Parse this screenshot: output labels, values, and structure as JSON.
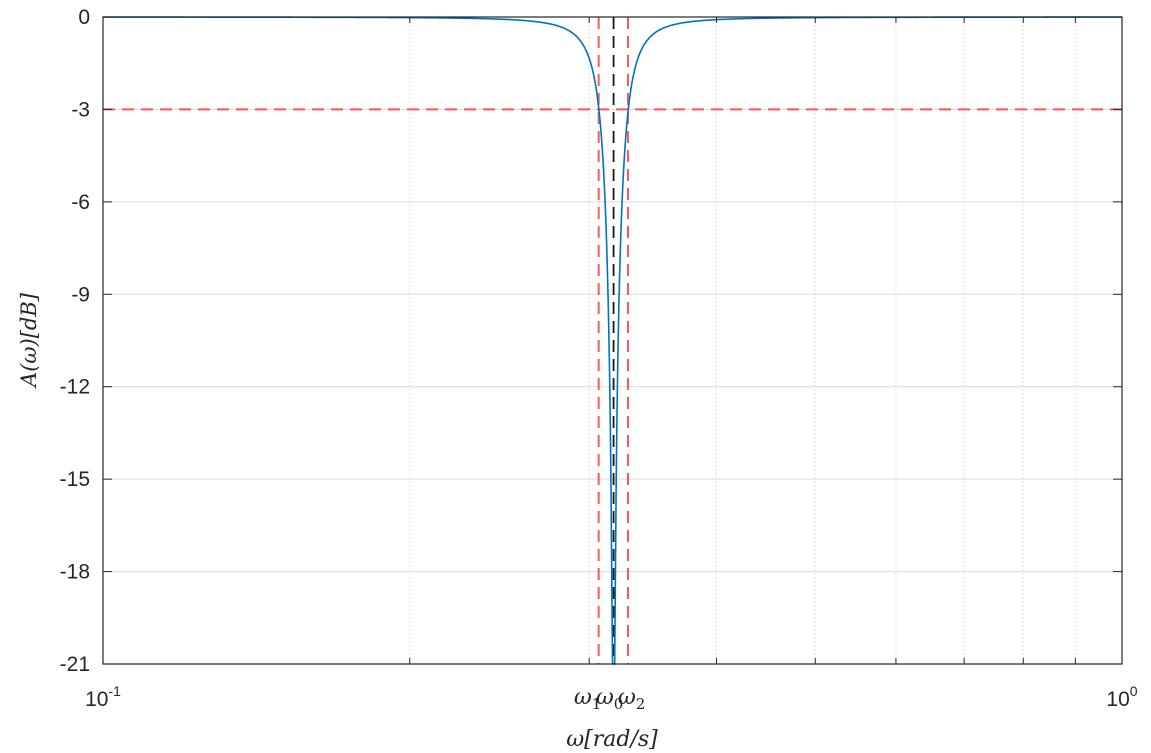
{
  "chart_data": {
    "type": "line",
    "x_scale": "log",
    "xlim": [
      0.1,
      1
    ],
    "ylim": [
      -21,
      0
    ],
    "grid": true,
    "minor_grid_x": true,
    "x_ticks": [
      {
        "value": 0.1,
        "base": "10",
        "exp": "-1"
      },
      {
        "value": 1,
        "base": "10",
        "exp": "0"
      }
    ],
    "y_ticks": [
      "0",
      "-3",
      "-6",
      "-9",
      "-12",
      "-15",
      "-18",
      "-21"
    ],
    "y_tick_values": [
      0,
      -3,
      -6,
      -9,
      -12,
      -15,
      -18,
      -21
    ],
    "xlabel": "ω[rad/s]",
    "ylabel": "A(ω)[dB]",
    "omega_labels": [
      {
        "name": "omega1",
        "greek": "ω",
        "sub": "1",
        "x": 0.3065
      },
      {
        "name": "omega0",
        "greek": "ω",
        "sub": "0",
        "x": 0.317
      },
      {
        "name": "omega2",
        "greek": "ω",
        "sub": "2",
        "x": 0.3275
      }
    ],
    "series": [
      {
        "role": "response",
        "color": "#0072BD",
        "center": 0.317,
        "bandwidth": 0.021,
        "min_db": -21
      }
    ],
    "reference_lines": [
      {
        "orientation": "horizontal",
        "value": -3,
        "color": "#FF3B3B",
        "style": "dashed"
      },
      {
        "orientation": "vertical",
        "value": 0.3065,
        "color": "#FF3B3B",
        "style": "dashed"
      },
      {
        "orientation": "vertical",
        "value": 0.3275,
        "color": "#FF3B3B",
        "style": "dashed"
      },
      {
        "orientation": "vertical",
        "value": 0.317,
        "color": "#000000",
        "style": "dashed"
      }
    ]
  }
}
